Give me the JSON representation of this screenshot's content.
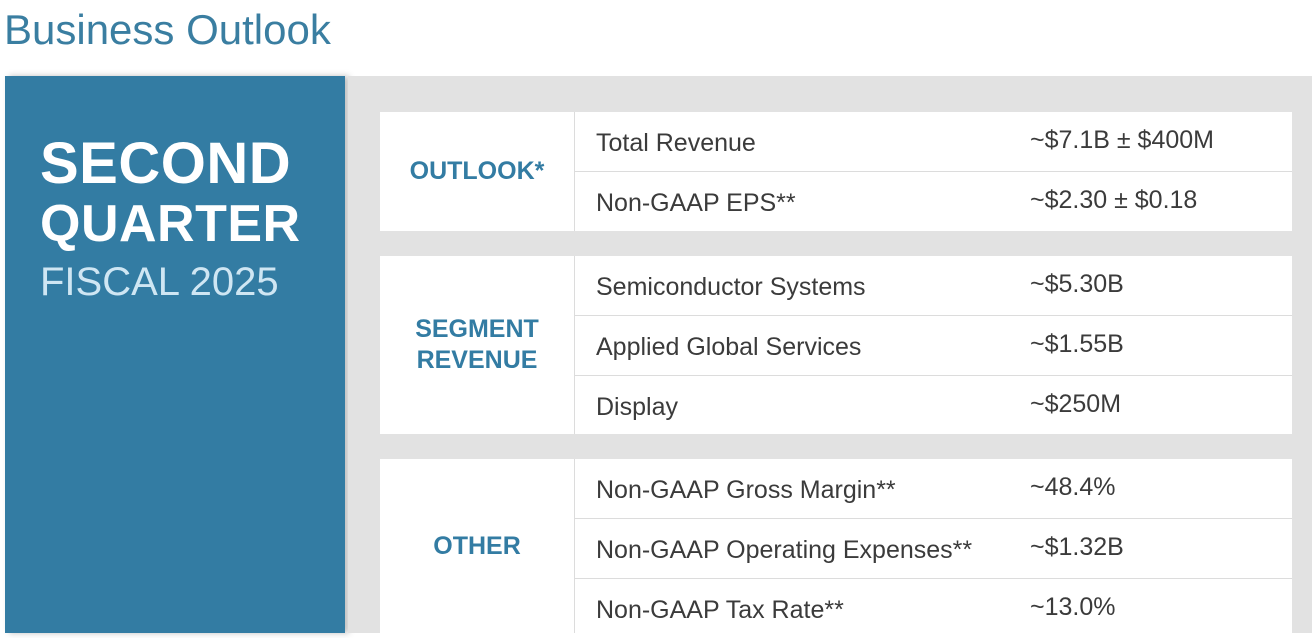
{
  "page": {
    "title": "Business Outlook"
  },
  "left_panel": {
    "line1": "SECOND",
    "line2": "QUARTER",
    "line3": "FISCAL 2025"
  },
  "sections": [
    {
      "label": "OUTLOOK*",
      "rows": [
        {
          "metric": "Total Revenue",
          "value": "~$7.1B ± $400M"
        },
        {
          "metric": "Non-GAAP EPS**",
          "value": "~$2.30 ± $0.18"
        }
      ]
    },
    {
      "label_line1": "SEGMENT",
      "label_line2": "REVENUE",
      "rows": [
        {
          "metric": "Semiconductor Systems",
          "value": "~$5.30B"
        },
        {
          "metric": "Applied Global Services",
          "value": "~$1.55B"
        },
        {
          "metric": "Display",
          "value": "~$250M"
        }
      ]
    },
    {
      "label": "OTHER",
      "rows": [
        {
          "metric": "Non-GAAP Gross Margin**",
          "value": "~48.4%"
        },
        {
          "metric": "Non-GAAP Operating Expenses**",
          "value": "~$1.32B"
        },
        {
          "metric": "Non-GAAP Tax Rate**",
          "value": "~13.0%"
        }
      ]
    }
  ],
  "colors": {
    "accent": "#337ca3",
    "title": "#3a7ea1",
    "panel_background": "#e2e2e2",
    "text": "#3b3b3b"
  }
}
